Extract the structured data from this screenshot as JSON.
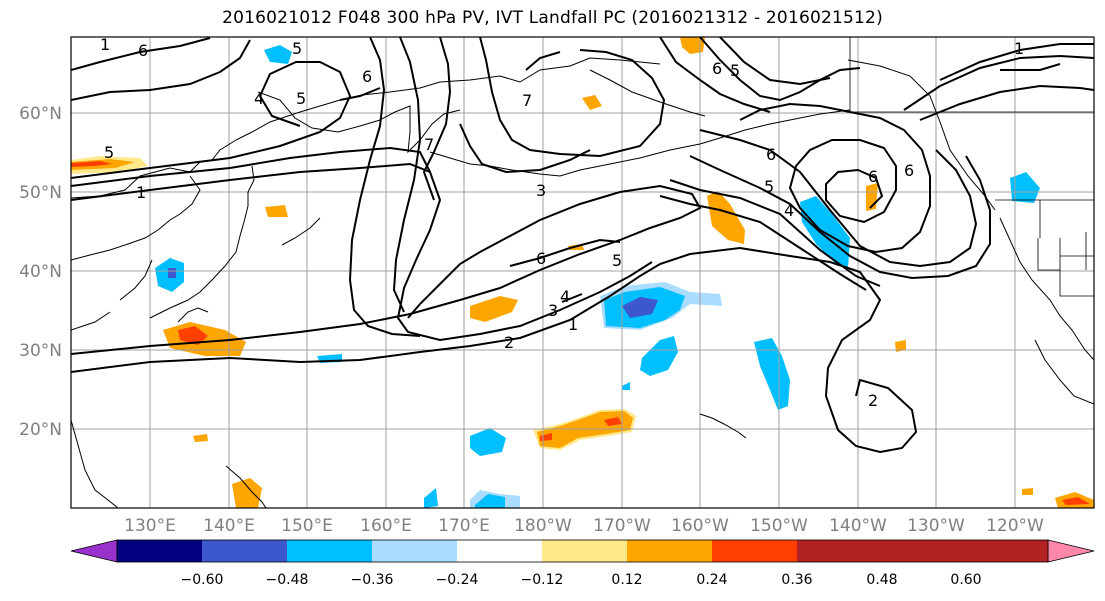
{
  "title": "2016021012 F048 300 hPa PV, IVT Landfall PC (2016021312 - 2016021512)",
  "axes": {
    "lat_labels": [
      "60°N",
      "50°N",
      "40°N",
      "30°N",
      "20°N"
    ],
    "lon_labels": [
      "130°E",
      "140°E",
      "150°E",
      "160°E",
      "170°E",
      "180°W",
      "170°W",
      "160°W",
      "150°W",
      "140°W",
      "130°W",
      "120°W"
    ]
  },
  "contour_labels": [
    "1",
    "6",
    "5",
    "6",
    "4",
    "5",
    "7",
    "7",
    "6",
    "5",
    "5",
    "1",
    "6",
    "3",
    "6",
    "5",
    "4",
    "3",
    "1",
    "2",
    "5",
    "4",
    "6",
    "6",
    "2",
    "1"
  ],
  "colorbar": {
    "ticks": [
      "−0.60",
      "−0.48",
      "−0.36",
      "−0.24",
      "−0.12",
      "0.12",
      "0.24",
      "0.36",
      "0.48",
      "0.60"
    ],
    "colors": [
      "#9932cc",
      "#000080",
      "#3c58cc",
      "#00bfff",
      "#aadcff",
      "#ffffff",
      "#ffe98a",
      "#ffa500",
      "#ff4000",
      "#b22222",
      "#ff88aa"
    ]
  },
  "legend_colors": {
    "pos_light": "#ffe98a",
    "pos_orange": "#ffa500",
    "pos_red": "#ff4000",
    "neg_light": "#aadcff",
    "neg_cyan": "#00bfff",
    "neg_blue": "#3c58cc"
  }
}
